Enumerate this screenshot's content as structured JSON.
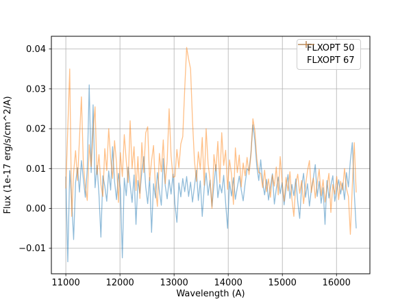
{
  "chart_data": {
    "type": "line",
    "title": "",
    "xlabel": "Wavelength (A)",
    "ylabel": "Flux (1e-17 erg/s/cm^2/A)",
    "xlim": [
      10733,
      16617
    ],
    "ylim": [
      -0.0164,
      0.0432
    ],
    "xticks": [
      11000,
      12000,
      13000,
      14000,
      15000,
      16000
    ],
    "xtick_labels": [
      "11000",
      "12000",
      "13000",
      "14000",
      "15000",
      "16000"
    ],
    "yticks": [
      -0.01,
      0.0,
      0.01,
      0.02,
      0.03,
      0.04
    ],
    "ytick_labels": [
      "−0.01",
      "0.00",
      "0.01",
      "0.02",
      "0.03",
      "0.04"
    ],
    "grid": true,
    "grid_color": "#b0b0b0",
    "frame_color": "#000000",
    "text_color": "#000000",
    "legend": {
      "location": "upper right"
    },
    "series": [
      {
        "name": "FLXOPT 50",
        "color": "#1f77b4",
        "alpha": 0.5,
        "x_start": 11000,
        "x_step": 36,
        "y_scale": 0.001,
        "y_milli": [
          8.0,
          -13.4,
          9.5,
          2.0,
          -7.8,
          6.5,
          10.2,
          4.1,
          12.0,
          7.4,
          2.8,
          9.8,
          31.0,
          9.0,
          26.0,
          5.2,
          10.8,
          3.5,
          -7.2,
          8.2,
          5.6,
          1.8,
          9.4,
          4.6,
          15.5,
          6.8,
          2.2,
          8.8,
          5.0,
          -12.4,
          7.6,
          3.2,
          10.4,
          6.0,
          1.5,
          8.4,
          -4.0,
          7.0,
          3.8,
          9.2,
          13.0,
          5.4,
          1.2,
          7.8,
          -6.0,
          6.2,
          2.6,
          9.0,
          4.4,
          0.8,
          12.5,
          5.8,
          2.4,
          7.2,
          3.6,
          8.6,
          1.0,
          -3.5,
          6.4,
          2.9,
          7.5,
          4.2,
          8.0,
          3.0,
          6.6,
          1.6,
          5.5,
          9.6,
          2.0,
          6.9,
          -2.0,
          5.1,
          8.9,
          3.3,
          7.1,
          0.5,
          5.9,
          11.0,
          2.7,
          6.1,
          3.9,
          8.3,
          1.4,
          -5.0,
          6.7,
          3.1,
          7.7,
          2.3,
          5.3,
          8.1,
          4.7,
          1.9,
          6.3,
          9.9,
          9.5,
          14.0,
          21.0,
          17.0,
          10.5,
          7.0,
          12.2,
          6.6,
          3.4,
          7.3,
          2.1,
          5.5,
          8.7,
          1.1,
          4.9,
          7.9,
          3.7,
          6.5,
          0.9,
          5.0,
          8.5,
          2.5,
          6.0,
          3.2,
          7.4,
          1.7,
          -2.5,
          5.6,
          8.8,
          2.8,
          6.2,
          0.6,
          4.8,
          7.6,
          11.0,
          3.0,
          6.8,
          1.3,
          5.2,
          -4.0,
          7.0,
          2.6,
          5.8,
          8.2,
          1.8,
          4.6,
          7.2,
          3.6,
          6.4,
          2.2,
          9.0,
          5.4,
          12.0,
          16.5,
          4.0,
          -5.0
        ]
      },
      {
        "name": "FLXOPT 67",
        "color": "#ff7f0e",
        "alpha": 0.5,
        "x_start": 11000,
        "x_step": 36,
        "y_scale": 0.001,
        "y_milli": [
          5.0,
          20.0,
          35.0,
          -2.0,
          9.0,
          14.5,
          7.0,
          17.5,
          28.0,
          11.0,
          5.5,
          2.0,
          16.0,
          10.5,
          19.5,
          25.5,
          8.5,
          13.5,
          6.0,
          3.0,
          15.0,
          9.5,
          20.0,
          12.5,
          7.5,
          17.0,
          11.5,
          1.5,
          14.0,
          8.0,
          18.5,
          12.0,
          6.5,
          22.0,
          10.0,
          15.5,
          4.5,
          13.0,
          2.5,
          16.5,
          9.0,
          19.0,
          20.5,
          7.0,
          12.0,
          15.8,
          5.0,
          0.5,
          13.8,
          9.2,
          17.2,
          6.2,
          11.8,
          25.0,
          13.2,
          7.8,
          8.0,
          14.8,
          10.2,
          16.2,
          18.0,
          30.0,
          40.4,
          37.5,
          35.0,
          22.0,
          12.0,
          6.8,
          14.2,
          9.8,
          17.8,
          5.8,
          20.0,
          11.2,
          7.2,
          0.0,
          13.5,
          9.4,
          16.8,
          6.4,
          19.0,
          10.8,
          14.6,
          4.8,
          12.2,
          8.6,
          1.0,
          15.2,
          9.0,
          13.4,
          5.4,
          11.4,
          8.2,
          12.8,
          8.5,
          13.5,
          22.5,
          19.5,
          12.5,
          9.0,
          8.8,
          5.2,
          9.6,
          4.2,
          7.4,
          2.8,
          8.4,
          5.6,
          10.4,
          3.4,
          13.0,
          6.6,
          1.8,
          7.8,
          4.4,
          9.2,
          2.4,
          -2.0,
          6.2,
          8.6,
          3.8,
          7.0,
          1.2,
          5.8,
          9.4,
          12.0,
          4.0,
          7.6,
          2.6,
          6.4,
          9.8,
          3.2,
          7.2,
          1.6,
          5.4,
          8.8,
          -1.0,
          6.0,
          3.6,
          8.0,
          2.2,
          6.8,
          4.6,
          10.0,
          5.0,
          3.0,
          -6.5,
          5.6,
          16.5,
          4.0
        ]
      }
    ]
  }
}
